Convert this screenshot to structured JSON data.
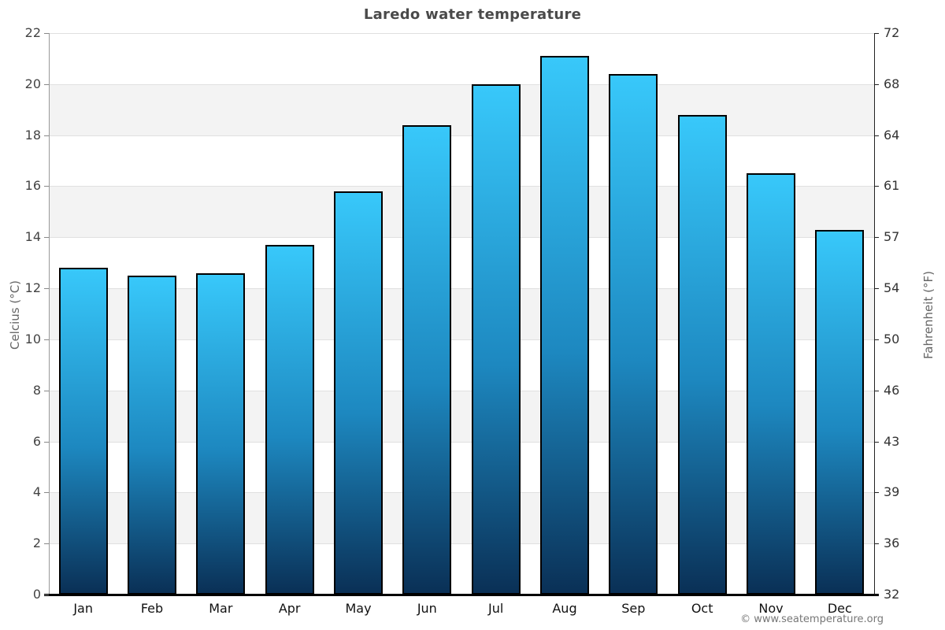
{
  "title": "Laredo water temperature",
  "watermark": "© www.seatemperature.org",
  "axes": {
    "left_label": "Celcius (°C)",
    "right_label": "Fahrenheit (°F)",
    "celsius_ticks": [
      0,
      2,
      4,
      6,
      8,
      10,
      12,
      14,
      16,
      18,
      20,
      22
    ],
    "fahrenheit_ticks": [
      32,
      36,
      39,
      43,
      46,
      50,
      54,
      57,
      61,
      64,
      68,
      72
    ]
  },
  "chart_data": {
    "type": "bar",
    "title": "Laredo water temperature",
    "categories": [
      "Jan",
      "Feb",
      "Mar",
      "Apr",
      "May",
      "Jun",
      "Jul",
      "Aug",
      "Sep",
      "Oct",
      "Nov",
      "Dec"
    ],
    "values": [
      12.8,
      12.5,
      12.6,
      13.7,
      15.8,
      18.4,
      20.0,
      21.1,
      20.4,
      18.8,
      16.5,
      14.3
    ],
    "xlabel": "",
    "ylabel": "Celcius (°C)",
    "ylabel_right": "Fahrenheit (°F)",
    "ylim": [
      0,
      22
    ],
    "grid": true,
    "band_fill_color": "#f3f3f3",
    "gridline_color": "#e0e0e0",
    "bar_gradient_top": "#38c8fa",
    "bar_gradient_bottom": "#0a3056",
    "bar_border_color": "#000000",
    "title_color": "#4a4a4a"
  }
}
